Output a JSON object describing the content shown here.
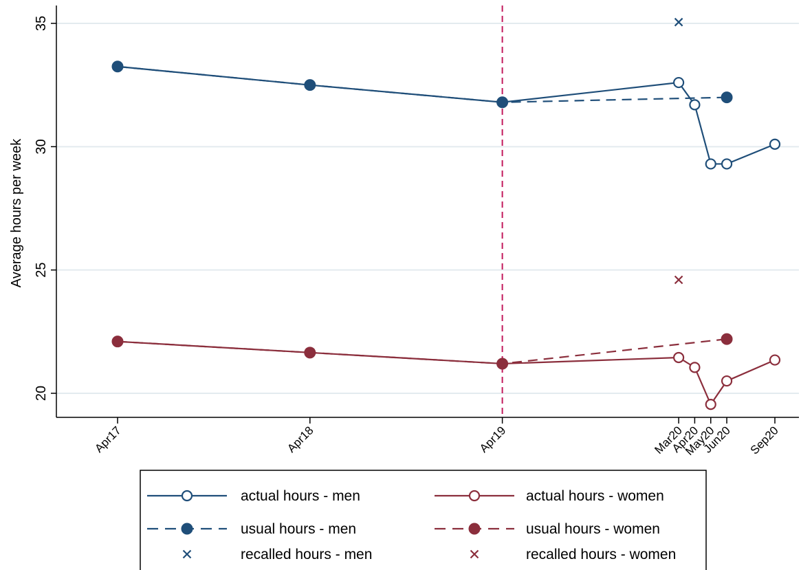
{
  "chart_data": {
    "type": "line",
    "ylabel": "Average hours per week",
    "xlabel": "",
    "ylim": [
      19.2,
      36.0
    ],
    "yticks": [
      20,
      25,
      30,
      35
    ],
    "x_ticks": [
      {
        "label": "Apr17",
        "t": 0
      },
      {
        "label": "Apr18",
        "t": 12
      },
      {
        "label": "Apr19",
        "t": 24
      },
      {
        "label": "Mar20",
        "t": 35
      },
      {
        "label": "Apr20",
        "t": 36
      },
      {
        "label": "May20",
        "t": 37
      },
      {
        "label": "Jun20",
        "t": 38
      },
      {
        "label": "Sep20",
        "t": 41
      }
    ],
    "vline_at": "Apr19",
    "grid": true,
    "series": [
      {
        "name": "actual hours - men",
        "color": "#1f4e79",
        "style": "solid",
        "marker": "hollow-circle",
        "points": [
          [
            "Apr17",
            33.25
          ],
          [
            "Apr18",
            32.5
          ],
          [
            "Apr19",
            31.8
          ],
          [
            "Mar20",
            32.6
          ],
          [
            "Apr20",
            31.7
          ],
          [
            "May20",
            29.3
          ],
          [
            "Jun20",
            29.3
          ],
          [
            "Sep20",
            30.1
          ]
        ]
      },
      {
        "name": "usual hours - men",
        "color": "#1f4e79",
        "style": "dashed",
        "marker": "filled-circle",
        "line_points": [
          [
            "Apr17",
            33.25
          ],
          [
            "Apr18",
            32.5
          ],
          [
            "Apr19",
            31.8
          ],
          [
            "Jun20",
            32.0
          ]
        ],
        "marker_points": [
          [
            "Apr17",
            33.25
          ],
          [
            "Apr18",
            32.5
          ],
          [
            "Apr19",
            31.8
          ],
          [
            "Jun20",
            32.0
          ]
        ]
      },
      {
        "name": "recalled hours - men",
        "color": "#1f4e79",
        "style": "none",
        "marker": "x",
        "points": [
          [
            "Mar20",
            35.05
          ]
        ]
      },
      {
        "name": "actual hours - women",
        "color": "#8b2e3c",
        "style": "solid",
        "marker": "hollow-circle",
        "points": [
          [
            "Apr17",
            22.1
          ],
          [
            "Apr18",
            21.65
          ],
          [
            "Apr19",
            21.2
          ],
          [
            "Mar20",
            21.45
          ],
          [
            "Apr20",
            21.05
          ],
          [
            "May20",
            19.55
          ],
          [
            "Jun20",
            20.5
          ],
          [
            "Sep20",
            21.35
          ]
        ]
      },
      {
        "name": "usual hours - women",
        "color": "#8b2e3c",
        "style": "dashed",
        "marker": "filled-circle",
        "line_points": [
          [
            "Apr17",
            22.1
          ],
          [
            "Apr18",
            21.65
          ],
          [
            "Apr19",
            21.2
          ],
          [
            "Jun20",
            22.2
          ]
        ],
        "marker_points": [
          [
            "Apr17",
            22.1
          ],
          [
            "Apr18",
            21.65
          ],
          [
            "Apr19",
            21.2
          ],
          [
            "Jun20",
            22.2
          ]
        ]
      },
      {
        "name": "recalled hours - women",
        "color": "#8b2e3c",
        "style": "none",
        "marker": "x",
        "points": [
          [
            "Mar20",
            24.6
          ]
        ]
      }
    ],
    "legend": {
      "placement": "bottom",
      "entries": [
        {
          "label": "actual hours - men",
          "series": 0
        },
        {
          "label": "actual hours - women",
          "series": 3
        },
        {
          "label": "usual hours - men",
          "series": 1
        },
        {
          "label": "usual hours - women",
          "series": 4
        },
        {
          "label": "recalled hours - men",
          "series": 2
        },
        {
          "label": "recalled hours - women",
          "series": 5
        }
      ]
    },
    "colors": {
      "vline": "#c2185b",
      "grid": "#e3ebef",
      "axis": "#000000"
    }
  }
}
